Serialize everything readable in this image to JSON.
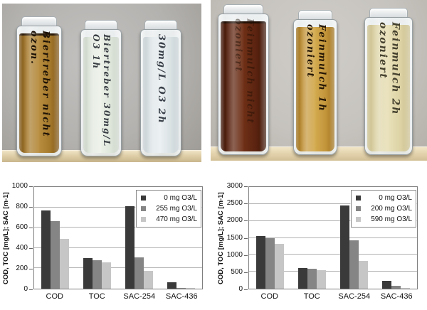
{
  "photos": {
    "left": {
      "vials": [
        {
          "label": "Biertreber nicht ozon.",
          "liquid_dark": "#7c5417",
          "liquid_mid": "#a5792b",
          "liquid_light": "#b88e40",
          "ink": "#1d1206"
        },
        {
          "label": "Biertreber 30mg/L O3 1h",
          "liquid_dark": "#c9d2c6",
          "liquid_mid": "#dde5da",
          "liquid_light": "#eef2ea",
          "ink": "#3a3f45"
        },
        {
          "label": "30mg/L O3 2h",
          "liquid_dark": "#c5ced2",
          "liquid_mid": "#d9e1e4",
          "liquid_light": "#ebf0f2",
          "ink": "#3a4049"
        }
      ]
    },
    "right": {
      "vials": [
        {
          "label": "Feinmulch nicht ozoniert",
          "liquid_dark": "#3c1405",
          "liquid_mid": "#5a2310",
          "liquid_light": "#703016",
          "ink": "#1a0c04"
        },
        {
          "label": "Feinmulch 1h ozoniert",
          "liquid_dark": "#9c701c",
          "liquid_mid": "#c2943a",
          "liquid_light": "#d4ab50",
          "ink": "#241605"
        },
        {
          "label": "Feinmulch 2h ozoniert",
          "liquid_dark": "#c6bb8a",
          "liquid_mid": "#dcd2a4",
          "liquid_light": "#e9e1ba",
          "ink": "#45412f"
        }
      ]
    }
  },
  "chart_data": [
    {
      "type": "bar",
      "title": "",
      "xlabel": "",
      "ylabel": "COD, TOC [mg/L]; SAC [m-1]",
      "ylim": [
        0,
        1000
      ],
      "yticks": [
        0,
        200,
        400,
        600,
        800,
        1000
      ],
      "grid": true,
      "legend_position": "top-right",
      "categories": [
        "COD",
        "TOC",
        "SAC-254",
        "SAC-436"
      ],
      "series": [
        {
          "name": "0 mg O3/L",
          "color": "#3a3a3a",
          "values": [
            770,
            300,
            810,
            60
          ]
        },
        {
          "name": "255 mg O3/L",
          "color": "#858585",
          "values": [
            665,
            280,
            310,
            8
          ]
        },
        {
          "name": "470 mg O3/L",
          "color": "#c6c6c6",
          "values": [
            490,
            260,
            175,
            5
          ]
        }
      ]
    },
    {
      "type": "bar",
      "title": "",
      "xlabel": "",
      "ylabel": "COD, TOC [mg/L]; SAC [m-1]",
      "ylim": [
        0,
        3000
      ],
      "yticks": [
        0,
        500,
        1000,
        1500,
        2000,
        2500,
        3000
      ],
      "grid": true,
      "legend_position": "top-right",
      "categories": [
        "COD",
        "TOC",
        "SAC-254",
        "SAC-436"
      ],
      "series": [
        {
          "name": "0 mg O3/L",
          "color": "#3a3a3a",
          "values": [
            1560,
            600,
            2450,
            240
          ]
        },
        {
          "name": "200 mg O3/L",
          "color": "#858585",
          "values": [
            1500,
            590,
            1430,
            90
          ]
        },
        {
          "name": "590 mg O3/L",
          "color": "#c6c6c6",
          "values": [
            1320,
            555,
            820,
            30
          ]
        }
      ]
    }
  ]
}
